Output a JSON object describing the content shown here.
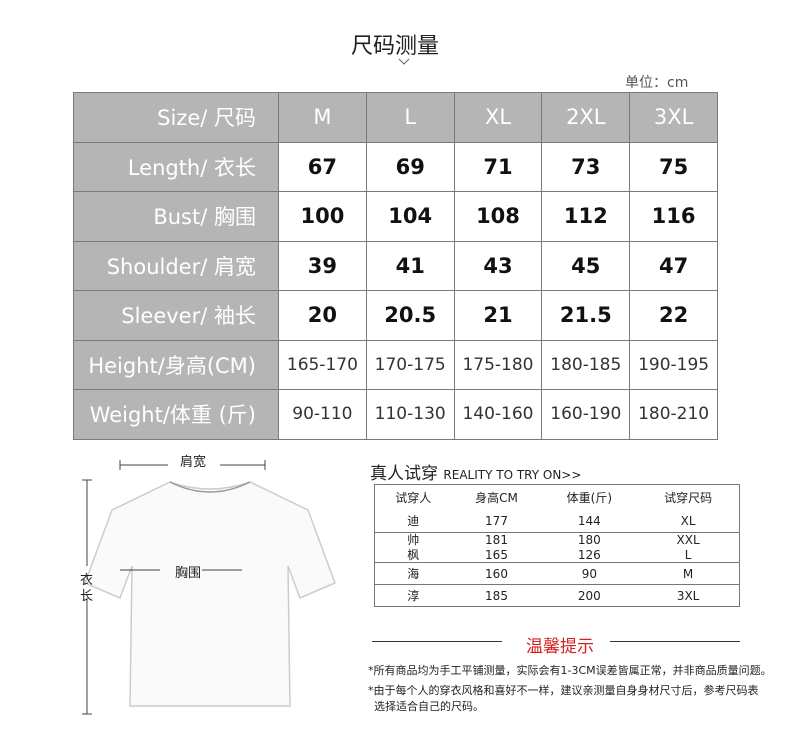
{
  "title": "尺码测量",
  "unit": "单位：cm",
  "size_table": {
    "header": {
      "label": "Size/ 尺码",
      "sizes": [
        "M",
        "L",
        "XL",
        "2XL",
        "3XL"
      ]
    },
    "rows": [
      {
        "label": "Length/  衣长",
        "values": [
          "67",
          "69",
          "71",
          "73",
          "75"
        ]
      },
      {
        "label": "Bust/ 胸围",
        "values": [
          "100",
          "104",
          "108",
          "112",
          "116"
        ]
      },
      {
        "label": "Shoulder/ 肩宽",
        "values": [
          "39",
          "41",
          "43",
          "45",
          "47"
        ]
      },
      {
        "label": "Sleever/ 袖长",
        "values": [
          "20",
          "20.5",
          "21",
          "21.5",
          "22"
        ]
      },
      {
        "label": "Height/身高(CM)",
        "values": [
          "165-170",
          "170-175",
          "175-180",
          "180-185",
          "190-195"
        ]
      },
      {
        "label": "Weight/体重 (斤)",
        "values": [
          "90-110",
          "110-130",
          "140-160",
          "160-190",
          "180-210"
        ]
      }
    ]
  },
  "diagram": {
    "shoulder": "肩宽",
    "bust": "胸围",
    "length": "衣长"
  },
  "try_on": {
    "title": "真人试穿",
    "subtitle": "REALITY TO TRY ON>>",
    "headers": [
      "试穿人",
      "身高CM",
      "体重(斤)",
      "试穿尺码"
    ],
    "rows": [
      [
        "迪",
        "177",
        "144",
        "XL"
      ],
      [
        "帅",
        "181",
        "180",
        "XXL"
      ],
      [
        "枫",
        "165",
        "126",
        "L"
      ],
      [
        "海",
        "160",
        "90",
        "M"
      ],
      [
        "淳",
        "185",
        "200",
        "3XL"
      ]
    ]
  },
  "tips": {
    "title": "温馨提示",
    "notes": [
      "*所有商品均为手工平铺测量，实际会有1-3CM误差皆属正常，并非商品质量问题。",
      "*由于每个人的穿衣风格和喜好不一样，建议亲测量自身身材尺寸后，参考尺码表",
      "选择适合自己的尺码。"
    ]
  }
}
